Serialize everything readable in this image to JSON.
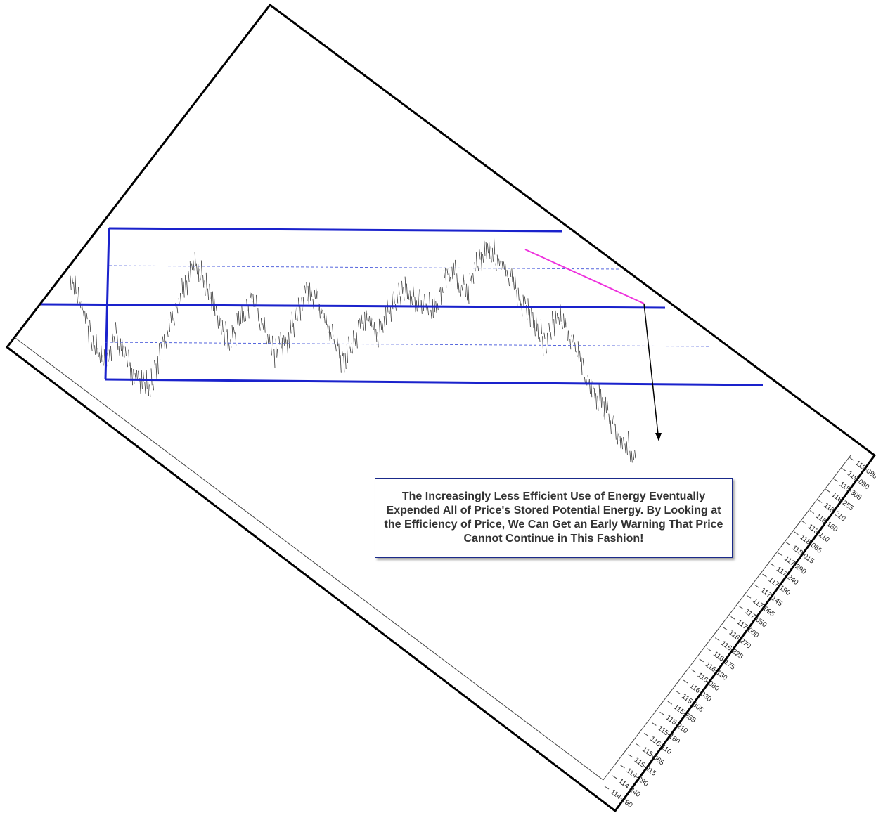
{
  "annotation": {
    "text": "The Increasingly Less Efficient Use of Energy Eventually Expended All of Price's Stored Potential Energy. By Looking at the Efficiency of Price, We Can Get an Early Warning That Price Cannot Continue in This Fashion!"
  },
  "colors": {
    "channel": "#1a22cc",
    "midline_dashed": "#5566dd",
    "trendline": "#ee33dd",
    "bars": "#333333",
    "frame": "#000000",
    "arrow": "#000000"
  },
  "chart_data": {
    "type": "line",
    "style": "rotated price-bar chart (OHLC) with a channel, a declining trendline and a downward arrow",
    "title": "",
    "xlabel": "",
    "ylabel": "",
    "grid": false,
    "ylim": [
      "114-190",
      "119-080"
    ],
    "y_tick_labels": [
      "119-080",
      "119-030",
      "118-305",
      "118-255",
      "118-210",
      "118-160",
      "118-110",
      "118-065",
      "118-015",
      "117-290",
      "117-240",
      "117-190",
      "117-145",
      "117-095",
      "117-050",
      "117-000",
      "116-270",
      "116-225",
      "116-175",
      "116-130",
      "116-080",
      "116-030",
      "115-305",
      "115-255",
      "115-210",
      "115-160",
      "115-110",
      "115-065",
      "115-015",
      "114-290",
      "114-240",
      "114-190"
    ],
    "x": [
      0,
      6,
      12,
      18,
      24,
      30,
      36,
      42,
      48,
      54,
      60,
      66,
      72,
      78,
      84,
      90,
      96,
      102,
      108,
      114,
      120,
      126,
      132,
      138,
      144,
      150,
      156,
      162,
      168,
      174,
      180,
      186,
      192,
      198,
      204,
      210,
      216,
      222,
      228,
      234,
      240,
      246,
      252,
      258,
      264,
      270,
      276,
      282,
      288,
      294,
      300
    ],
    "series": [
      {
        "values": [
          117.3,
          117.0,
          116.5,
          116.2,
          116.6,
          116.3,
          116.0,
          115.9,
          116.4,
          116.8,
          117.2,
          117.5,
          117.3,
          116.9,
          116.5,
          116.8,
          117.1,
          116.7,
          116.4,
          116.5,
          116.9,
          117.2,
          117.0,
          116.6,
          116.3,
          116.5,
          116.8,
          116.6,
          116.9,
          117.1,
          117.2,
          117.0,
          116.9,
          117.3,
          117.4,
          117.2,
          117.6,
          117.8,
          117.5,
          117.3,
          117.0,
          116.8,
          116.5,
          116.9,
          116.6,
          116.3,
          115.9,
          115.7,
          115.4,
          115.2,
          115.0
        ]
      }
    ],
    "levels": [
      {
        "name": "",
        "value": 118.0,
        "style": "solid"
      },
      {
        "name": "",
        "value": 117.5,
        "style": "dashed"
      },
      {
        "name": "",
        "value": 117.0,
        "style": "solid"
      },
      {
        "name": "",
        "value": 116.5,
        "style": "dashed"
      },
      {
        "name": "",
        "value": 116.0,
        "style": "solid"
      }
    ],
    "annotations": [
      {
        "type": "trendline",
        "from": [
          240,
          117.9
        ],
        "to": [
          300,
          117.0
        ],
        "color": "#ee33dd"
      },
      {
        "type": "arrow",
        "from": [
          300,
          117.0
        ],
        "to": [
          306,
          115.1
        ]
      }
    ]
  }
}
